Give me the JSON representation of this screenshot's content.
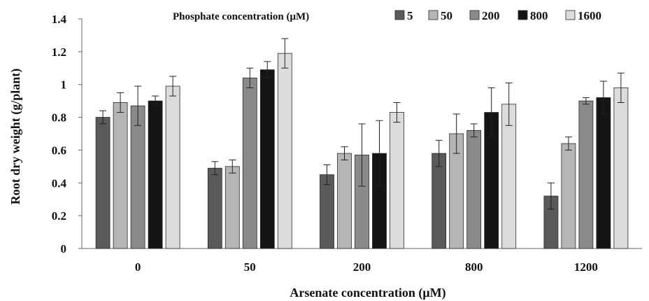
{
  "chart_data": {
    "type": "bar",
    "xlabel": "Arsenate concentration (μM)",
    "ylabel": "Root dry weight (g/plant)",
    "legend_title": "Phosphate concentration (μM)",
    "legend_position": "top",
    "categories": [
      "0",
      "50",
      "200",
      "800",
      "1200"
    ],
    "ylim": [
      0,
      1.4
    ],
    "yticks": [
      0,
      0.2,
      0.4,
      0.6,
      0.8,
      1,
      1.2,
      1.4
    ],
    "ytick_labels": [
      "0",
      "0.2",
      "0.4",
      "0.6",
      "0.8",
      "1",
      "1.2",
      "1.4"
    ],
    "grid": false,
    "series": [
      {
        "name": "5",
        "color": "#5a5a5a",
        "values": [
          0.8,
          0.49,
          0.45,
          0.58,
          0.32
        ],
        "errors": [
          0.04,
          0.04,
          0.06,
          0.08,
          0.08
        ]
      },
      {
        "name": "50",
        "color": "#b5b5b5",
        "values": [
          0.89,
          0.5,
          0.58,
          0.7,
          0.64
        ],
        "errors": [
          0.06,
          0.04,
          0.04,
          0.12,
          0.04
        ]
      },
      {
        "name": "200",
        "color": "#8a8a8a",
        "values": [
          0.87,
          1.04,
          0.57,
          0.72,
          0.9
        ],
        "errors": [
          0.12,
          0.06,
          0.19,
          0.04,
          0.02
        ]
      },
      {
        "name": "800",
        "color": "#151515",
        "values": [
          0.9,
          1.09,
          0.58,
          0.83,
          0.92
        ],
        "errors": [
          0.03,
          0.05,
          0.2,
          0.15,
          0.1
        ]
      },
      {
        "name": "1600",
        "color": "#dcdcdc",
        "values": [
          0.99,
          1.19,
          0.83,
          0.88,
          0.98
        ],
        "errors": [
          0.06,
          0.09,
          0.06,
          0.13,
          0.09
        ]
      }
    ]
  }
}
